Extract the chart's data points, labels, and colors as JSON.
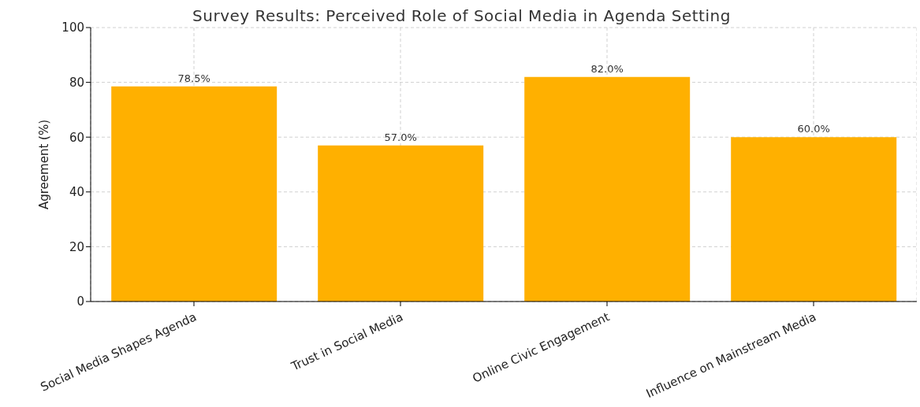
{
  "chart_data": {
    "type": "bar",
    "title": "Survey Results: Perceived Role of Social Media in Agenda Setting",
    "ylabel": "Agreement (%)",
    "categories": [
      "Social Media Shapes Agenda",
      "Trust in Social Media",
      "Online Civic Engagement",
      "Influence on Mainstream Media"
    ],
    "values": [
      78.5,
      57.0,
      82.0,
      60.0
    ],
    "value_labels": [
      "78.5%",
      "57.0%",
      "82.0%",
      "60.0%"
    ],
    "color": "#ffb000",
    "ylim": [
      0,
      100
    ],
    "yticks": [
      0,
      20,
      40,
      60,
      80,
      100
    ],
    "grid": true
  }
}
